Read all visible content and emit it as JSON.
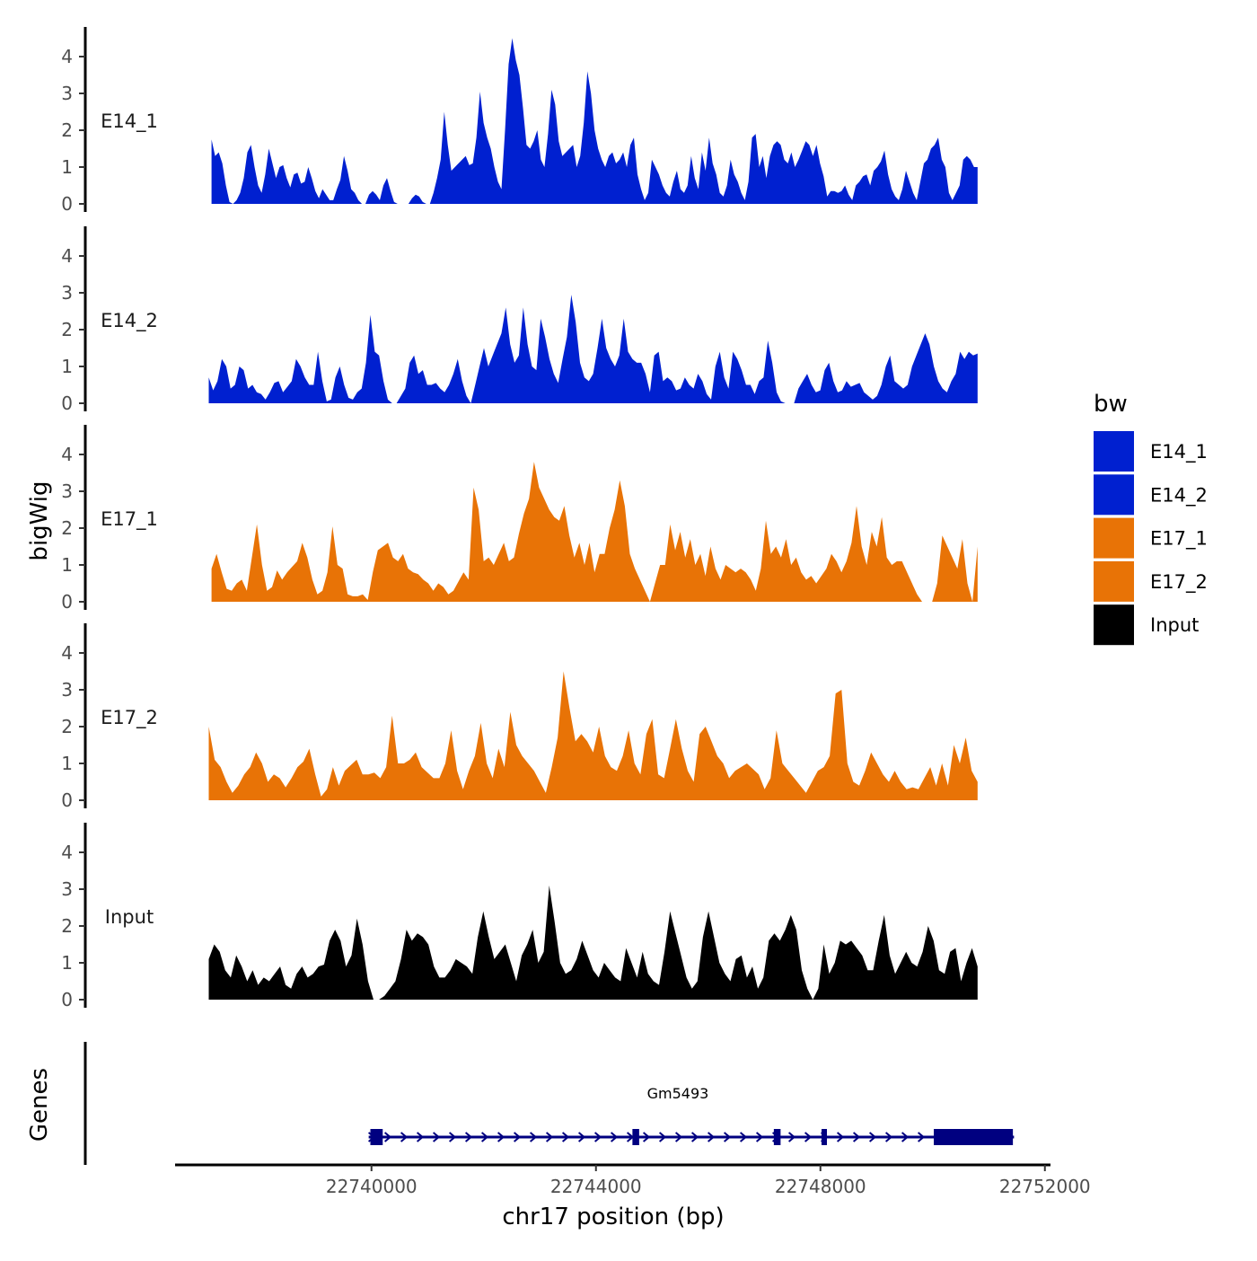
{
  "chart_data": {
    "type": "area",
    "title": "",
    "ylabel": "bigWig",
    "xlabel": "chr17 position (bp)",
    "xlim": [
      22736500,
      22752100
    ],
    "ylim": [
      0,
      4.7
    ],
    "y_ticks": [
      0,
      1,
      2,
      3,
      4
    ],
    "x_ticks": [
      22740000,
      22744000,
      22748000,
      22752000
    ],
    "x_tick_labels": [
      "22740000",
      "22744000",
      "22748000",
      "22752000"
    ],
    "legend": {
      "title": "bw",
      "placement": "right",
      "entries": [
        {
          "label": "E14_1",
          "color": "#0020D0"
        },
        {
          "label": "E14_2",
          "color": "#0020D0"
        },
        {
          "label": "E17_1",
          "color": "#E87306"
        },
        {
          "label": "E17_2",
          "color": "#E87306"
        },
        {
          "label": "Input",
          "color": "#000000"
        }
      ]
    },
    "series": [
      {
        "name": "E14_1",
        "color": "#0020D0",
        "x_start": 22737150,
        "x_end": 22750800,
        "step": 150,
        "values": [
          1.75,
          1.3,
          1.4,
          1.1,
          0.5,
          0.05,
          0.0,
          0.1,
          0.3,
          0.7,
          1.4,
          1.6,
          1.0,
          0.5,
          0.3,
          0.8,
          1.5,
          1.1,
          0.7,
          1.0,
          1.05,
          0.7,
          0.45,
          0.8,
          0.85,
          0.55,
          0.6,
          1.0,
          0.7,
          0.35,
          0.15,
          0.4,
          0.25,
          0.1,
          0.1,
          0.4,
          0.65,
          1.3,
          0.9,
          0.4,
          0.3,
          0.1,
          0.0,
          0.0,
          0.25,
          0.35,
          0.25,
          0.1,
          0.5,
          0.7,
          0.35,
          0.05,
          0.0,
          0.0,
          0.0,
          0.0,
          0.15,
          0.25,
          0.2,
          0.05,
          0.0,
          0.0,
          0.3,
          0.7,
          1.2,
          2.5,
          1.6,
          0.9,
          1.0,
          1.1,
          1.2,
          1.3,
          1.05,
          1.1,
          1.8,
          3.05,
          2.2,
          1.8,
          1.5,
          1.0,
          0.6,
          0.4,
          2.0,
          3.8,
          4.5,
          3.9,
          3.5,
          2.6,
          1.6,
          1.5,
          1.7,
          2.0,
          1.2,
          1.0,
          1.9,
          3.1,
          2.7,
          1.7,
          1.3,
          1.4,
          1.5,
          1.6,
          1.0,
          1.3,
          2.2,
          3.6,
          3.0,
          2.0,
          1.5,
          1.2,
          1.0,
          1.3,
          1.4,
          1.1,
          1.2,
          1.4,
          1.0,
          1.6,
          1.8,
          0.8,
          0.4,
          0.1,
          0.3,
          1.2,
          1.0,
          0.8,
          0.5,
          0.3,
          0.2,
          0.6,
          0.9,
          0.4,
          0.3,
          0.5,
          1.3,
          0.7,
          0.4,
          1.4,
          0.9,
          1.8,
          1.1,
          0.8,
          0.3,
          0.2,
          0.5,
          1.2,
          0.8,
          0.6,
          0.3,
          0.1,
          0.6,
          1.8,
          1.9,
          1.0,
          1.3,
          0.7,
          1.3,
          1.6,
          1.7,
          1.6,
          1.2,
          1.1,
          1.4,
          1.0,
          1.2,
          1.45,
          1.7,
          1.6,
          1.3,
          1.6,
          1.1,
          0.75,
          0.2,
          0.35,
          0.35,
          0.3,
          0.35,
          0.5,
          0.25,
          0.1,
          0.5,
          0.6,
          0.75,
          0.8,
          0.5,
          0.9,
          1.0,
          1.15,
          1.45,
          0.8,
          0.4,
          0.2,
          0.1,
          0.4,
          0.9,
          0.6,
          0.3,
          0.1,
          0.6,
          1.1,
          1.2,
          1.5,
          1.6,
          1.8,
          1.2,
          1.0,
          0.3,
          0.1,
          0.3,
          0.5,
          1.2,
          1.3,
          1.2,
          1.0,
          1.0
        ]
      },
      {
        "name": "E14_2",
        "color": "#0020D0",
        "x_start": 22737100,
        "x_end": 22750800,
        "step": 150,
        "values": [
          0.7,
          0.35,
          0.6,
          1.2,
          1.0,
          0.4,
          0.5,
          1.0,
          0.9,
          0.4,
          0.5,
          0.3,
          0.25,
          0.1,
          0.3,
          0.55,
          0.6,
          0.3,
          0.45,
          0.6,
          1.2,
          1.0,
          0.7,
          0.5,
          0.5,
          1.4,
          0.6,
          0.05,
          0.1,
          0.7,
          1.0,
          0.5,
          0.15,
          0.1,
          0.3,
          0.4,
          1.1,
          2.4,
          1.4,
          1.3,
          0.6,
          0.1,
          0.0,
          0.0,
          0.2,
          0.4,
          1.1,
          1.3,
          0.8,
          0.9,
          0.5,
          0.5,
          0.55,
          0.4,
          0.3,
          0.5,
          0.8,
          1.2,
          0.6,
          0.2,
          0.0,
          0.5,
          1.0,
          1.5,
          1.0,
          1.3,
          1.6,
          1.9,
          2.6,
          1.6,
          1.1,
          1.3,
          2.6,
          1.6,
          1.0,
          0.9,
          2.3,
          1.8,
          1.2,
          0.8,
          0.55,
          1.2,
          1.8,
          2.95,
          2.2,
          1.1,
          0.7,
          0.6,
          0.8,
          1.5,
          2.3,
          1.5,
          1.2,
          1.0,
          1.3,
          2.3,
          1.4,
          1.2,
          1.1,
          1.1,
          0.8,
          0.3,
          1.3,
          1.4,
          0.6,
          0.7,
          0.6,
          0.35,
          0.4,
          0.7,
          0.5,
          0.4,
          0.8,
          0.6,
          0.25,
          0.1,
          1.0,
          1.4,
          0.7,
          0.4,
          1.4,
          1.2,
          0.9,
          0.5,
          0.5,
          0.25,
          0.6,
          0.7,
          1.7,
          1.1,
          0.3,
          0.05,
          0.0,
          0.0,
          0.0,
          0.4,
          0.6,
          0.8,
          0.5,
          0.3,
          0.35,
          0.9,
          1.1,
          0.6,
          0.3,
          0.35,
          0.6,
          0.45,
          0.5,
          0.55,
          0.3,
          0.2,
          0.1,
          0.2,
          0.5,
          1.0,
          1.3,
          0.6,
          0.5,
          0.4,
          0.5,
          1.0,
          1.3,
          1.6,
          1.9,
          1.6,
          1.0,
          0.6,
          0.4,
          0.3,
          0.6,
          0.8,
          1.4,
          1.2,
          1.4,
          1.3,
          1.35
        ]
      },
      {
        "name": "E17_1",
        "color": "#E87306",
        "x_start": 22737150,
        "x_end": 22750800,
        "step": 150,
        "values": [
          0.9,
          1.3,
          0.8,
          0.35,
          0.3,
          0.5,
          0.6,
          0.3,
          1.2,
          2.1,
          1.0,
          0.3,
          0.4,
          0.85,
          0.6,
          0.8,
          0.95,
          1.1,
          1.6,
          1.2,
          0.6,
          0.2,
          0.3,
          0.8,
          2.05,
          1.0,
          0.9,
          0.2,
          0.15,
          0.15,
          0.2,
          0.05,
          0.8,
          1.4,
          1.5,
          1.6,
          1.2,
          1.1,
          1.3,
          0.9,
          0.8,
          0.75,
          0.6,
          0.5,
          0.3,
          0.5,
          0.4,
          0.2,
          0.3,
          0.55,
          0.8,
          0.6,
          3.1,
          2.5,
          1.1,
          1.2,
          1.0,
          1.3,
          1.6,
          1.1,
          1.2,
          1.85,
          2.4,
          2.8,
          3.8,
          3.1,
          2.8,
          2.5,
          2.3,
          2.2,
          2.6,
          1.8,
          1.2,
          1.6,
          1.0,
          1.6,
          0.8,
          1.3,
          1.3,
          2.0,
          2.5,
          3.3,
          2.6,
          1.3,
          0.9,
          0.6,
          0.3,
          0.0,
          0.5,
          1.0,
          1.0,
          2.1,
          1.4,
          1.9,
          1.2,
          1.7,
          1.0,
          1.3,
          0.7,
          1.5,
          0.9,
          0.6,
          1.0,
          0.9,
          0.8,
          0.9,
          0.8,
          0.6,
          0.3,
          0.9,
          2.2,
          1.3,
          1.5,
          1.2,
          1.7,
          1.0,
          1.2,
          0.8,
          0.6,
          0.7,
          0.5,
          0.7,
          0.9,
          1.3,
          1.1,
          0.8,
          1.1,
          1.6,
          2.6,
          1.5,
          1.0,
          1.9,
          1.5,
          2.3,
          1.2,
          1.0,
          1.1,
          1.1,
          0.8,
          0.5,
          0.2,
          0.0,
          0.0,
          0.0,
          0.5,
          1.8,
          1.5,
          1.2,
          0.9,
          1.7,
          0.5,
          0.0,
          1.5
        ]
      },
      {
        "name": "E17_2",
        "color": "#E87306",
        "x_start": 22737100,
        "x_end": 22750800,
        "step": 150,
        "values": [
          2.0,
          1.1,
          0.9,
          0.5,
          0.2,
          0.4,
          0.7,
          0.9,
          1.3,
          1.0,
          0.5,
          0.7,
          0.6,
          0.35,
          0.6,
          0.9,
          1.05,
          1.4,
          0.7,
          0.1,
          0.3,
          0.9,
          0.4,
          0.8,
          0.95,
          1.1,
          0.7,
          0.7,
          0.75,
          0.6,
          0.9,
          2.3,
          1.0,
          1.0,
          1.1,
          1.3,
          0.9,
          0.75,
          0.6,
          0.6,
          1.0,
          1.9,
          0.8,
          0.3,
          0.8,
          1.2,
          2.1,
          1.0,
          0.6,
          1.4,
          0.9,
          2.4,
          1.5,
          1.2,
          1.0,
          0.8,
          0.5,
          0.2,
          0.9,
          1.7,
          3.5,
          2.5,
          1.6,
          1.8,
          1.6,
          1.3,
          2.0,
          1.2,
          0.9,
          0.8,
          1.2,
          1.9,
          1.0,
          0.7,
          1.8,
          2.2,
          0.7,
          0.6,
          1.4,
          2.2,
          1.4,
          0.8,
          0.5,
          1.8,
          2.0,
          1.6,
          1.2,
          1.0,
          0.6,
          0.8,
          0.9,
          1.0,
          0.85,
          0.7,
          0.3,
          0.6,
          1.9,
          1.0,
          0.8,
          0.6,
          0.4,
          0.2,
          0.5,
          0.8,
          0.9,
          1.2,
          2.9,
          3.0,
          1.0,
          0.5,
          0.4,
          0.8,
          1.3,
          1.0,
          0.7,
          0.5,
          0.8,
          0.5,
          0.3,
          0.35,
          0.3,
          0.6,
          0.9,
          0.4,
          1.0,
          0.4,
          1.5,
          1.0,
          1.7,
          0.8,
          0.5
        ]
      },
      {
        "name": "Input",
        "color": "#000000",
        "x_start": 22737100,
        "x_end": 22750800,
        "step": 150,
        "values": [
          1.1,
          1.5,
          1.3,
          0.8,
          0.6,
          1.2,
          0.9,
          0.5,
          0.8,
          0.4,
          0.6,
          0.5,
          0.7,
          0.9,
          0.4,
          0.3,
          0.7,
          0.9,
          0.6,
          0.7,
          0.9,
          0.95,
          1.6,
          1.9,
          1.6,
          0.9,
          1.2,
          2.2,
          1.5,
          0.5,
          0.0,
          0.0,
          0.1,
          0.3,
          0.5,
          1.1,
          1.9,
          1.6,
          1.8,
          1.7,
          1.5,
          0.9,
          0.6,
          0.6,
          0.8,
          1.1,
          1.0,
          0.9,
          0.7,
          1.7,
          2.4,
          1.7,
          1.1,
          1.3,
          1.5,
          1.0,
          0.5,
          1.2,
          1.5,
          1.9,
          1.0,
          1.3,
          3.1,
          2.1,
          1.0,
          0.7,
          0.8,
          1.1,
          1.6,
          1.2,
          0.8,
          0.6,
          1.0,
          0.8,
          0.6,
          0.5,
          1.4,
          1.0,
          0.6,
          1.3,
          0.7,
          0.5,
          0.4,
          1.3,
          2.4,
          1.8,
          1.2,
          0.6,
          0.3,
          0.5,
          1.7,
          2.4,
          1.7,
          1.0,
          0.7,
          0.5,
          1.1,
          1.2,
          0.6,
          0.9,
          0.3,
          0.6,
          1.6,
          1.8,
          1.6,
          1.9,
          2.3,
          1.9,
          0.8,
          0.3,
          0.0,
          0.3,
          1.5,
          0.7,
          1.0,
          1.6,
          1.5,
          1.6,
          1.4,
          1.2,
          0.8,
          0.8,
          1.6,
          2.3,
          1.2,
          0.7,
          1.0,
          1.3,
          1.0,
          0.9,
          1.3,
          2.0,
          1.6,
          0.8,
          0.7,
          1.3,
          1.4,
          0.5,
          1.0,
          1.4,
          0.9
        ]
      }
    ],
    "gene_track": {
      "label": "Genes",
      "gene_name": "Gm5493",
      "strand": "+",
      "start": 22739950,
      "end": 22751450,
      "exons": [
        {
          "start": 22739980,
          "end": 22740200
        },
        {
          "start": 22744650,
          "end": 22744770
        },
        {
          "start": 22747170,
          "end": 22747290
        },
        {
          "start": 22748020,
          "end": 22748070
        },
        {
          "start": 22750020,
          "end": 22751430
        }
      ]
    }
  }
}
